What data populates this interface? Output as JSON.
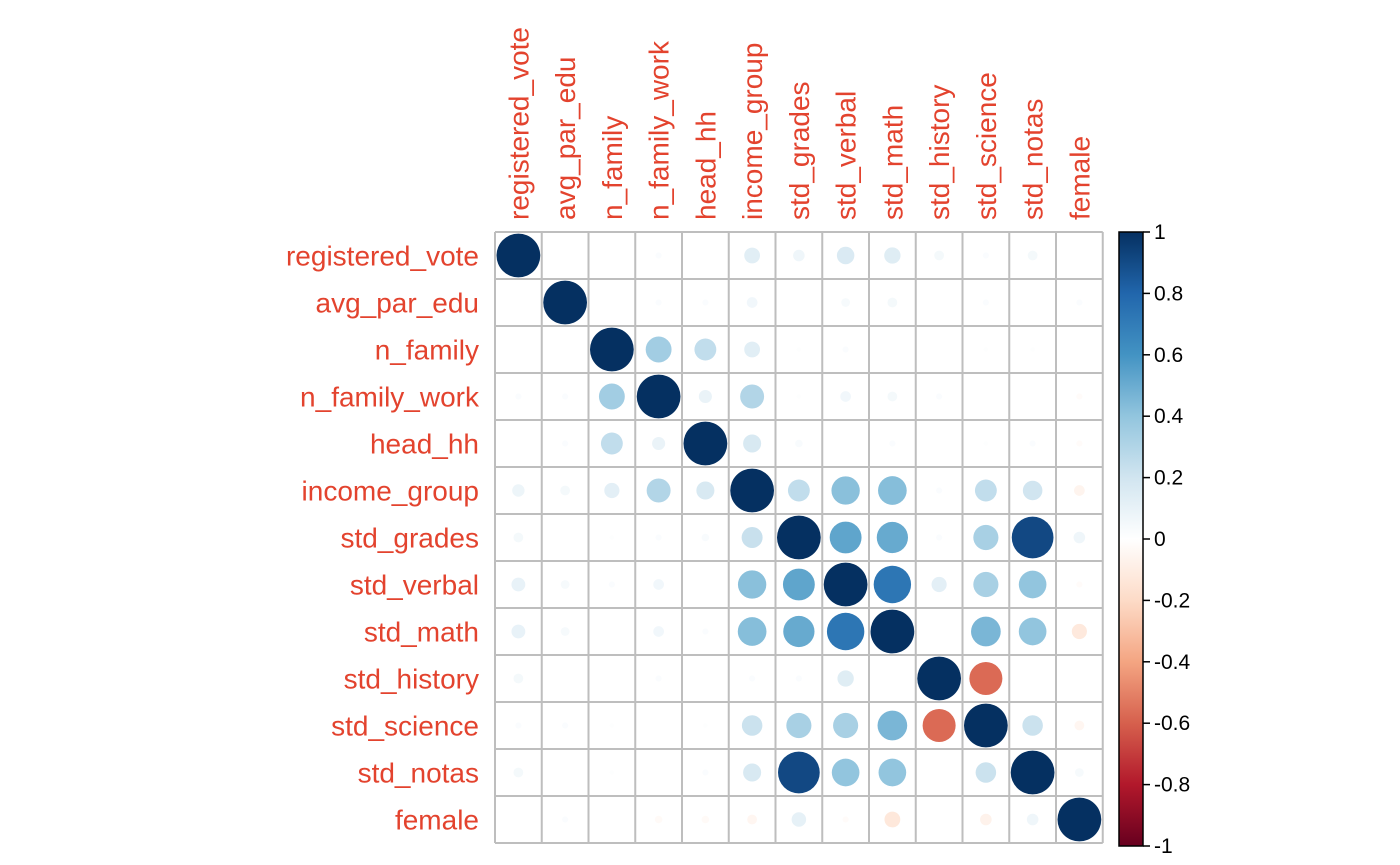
{
  "chart_data": {
    "type": "heatmap",
    "title": "",
    "method": "circle",
    "variables": [
      "registered_vote",
      "avg_par_edu",
      "n_family",
      "n_family_work",
      "head_hh",
      "income_group",
      "std_grades",
      "std_verbal",
      "std_math",
      "std_history",
      "std_science",
      "std_notas",
      "female"
    ],
    "matrix": [
      [
        1.0,
        0.0,
        0.0,
        0.02,
        0.0,
        0.13,
        0.07,
        0.16,
        0.14,
        0.05,
        0.02,
        0.05,
        0.0
      ],
      [
        0.0,
        1.0,
        0.0,
        0.02,
        0.02,
        0.06,
        0.0,
        0.04,
        0.05,
        0.0,
        0.02,
        0.0,
        0.02
      ],
      [
        0.0,
        0.0,
        1.0,
        0.35,
        0.25,
        0.13,
        0.01,
        0.02,
        0.0,
        0.0,
        0.01,
        0.01,
        0.0
      ],
      [
        0.02,
        0.02,
        0.35,
        1.0,
        0.09,
        0.3,
        0.01,
        0.06,
        0.05,
        0.02,
        0.0,
        0.0,
        -0.02
      ],
      [
        0.0,
        0.02,
        0.25,
        0.09,
        1.0,
        0.17,
        0.03,
        0.0,
        0.02,
        0.0,
        0.01,
        0.02,
        -0.02
      ],
      [
        0.08,
        0.05,
        0.12,
        0.3,
        0.17,
        1.0,
        0.25,
        0.42,
        0.43,
        0.02,
        0.25,
        0.2,
        -0.06
      ],
      [
        0.05,
        0.0,
        0.01,
        0.02,
        0.03,
        0.23,
        1.0,
        0.53,
        0.51,
        0.02,
        0.33,
        0.91,
        0.07
      ],
      [
        0.1,
        0.04,
        0.02,
        0.06,
        0.0,
        0.42,
        0.53,
        1.0,
        0.73,
        0.12,
        0.33,
        0.4,
        -0.02
      ],
      [
        0.1,
        0.04,
        0.0,
        0.06,
        0.02,
        0.43,
        0.51,
        0.73,
        1.0,
        0.0,
        0.46,
        0.4,
        -0.12
      ],
      [
        0.05,
        0.0,
        0.0,
        0.02,
        0.0,
        0.02,
        0.02,
        0.14,
        0.0,
        1.0,
        -0.57,
        0.0,
        0.0
      ],
      [
        0.02,
        0.02,
        0.01,
        0.0,
        0.01,
        0.22,
        0.33,
        0.33,
        0.46,
        -0.57,
        1.0,
        0.22,
        -0.05
      ],
      [
        0.05,
        0.0,
        0.01,
        0.0,
        0.02,
        0.17,
        0.91,
        0.4,
        0.4,
        0.0,
        0.22,
        1.0,
        0.04
      ],
      [
        0.0,
        0.02,
        0.0,
        -0.03,
        -0.03,
        -0.05,
        0.11,
        -0.02,
        -0.13,
        0.0,
        -0.07,
        0.07,
        1.0
      ]
    ],
    "colorbar": {
      "min": -1,
      "max": 1,
      "ticks": [
        "1",
        "0.8",
        "0.6",
        "0.4",
        "0.2",
        "0",
        "-0.2",
        "-0.4",
        "-0.6",
        "-0.8",
        "-1"
      ]
    },
    "colors": {
      "label": "#E3432E",
      "grid": "#BEBEBE",
      "text": "#000000"
    },
    "palette": [
      "#67001F",
      "#B2182B",
      "#D6604D",
      "#F4A582",
      "#FDDBC7",
      "#FFFFFF",
      "#D1E5F0",
      "#92C5DE",
      "#4393C3",
      "#2166AC",
      "#053061"
    ]
  }
}
